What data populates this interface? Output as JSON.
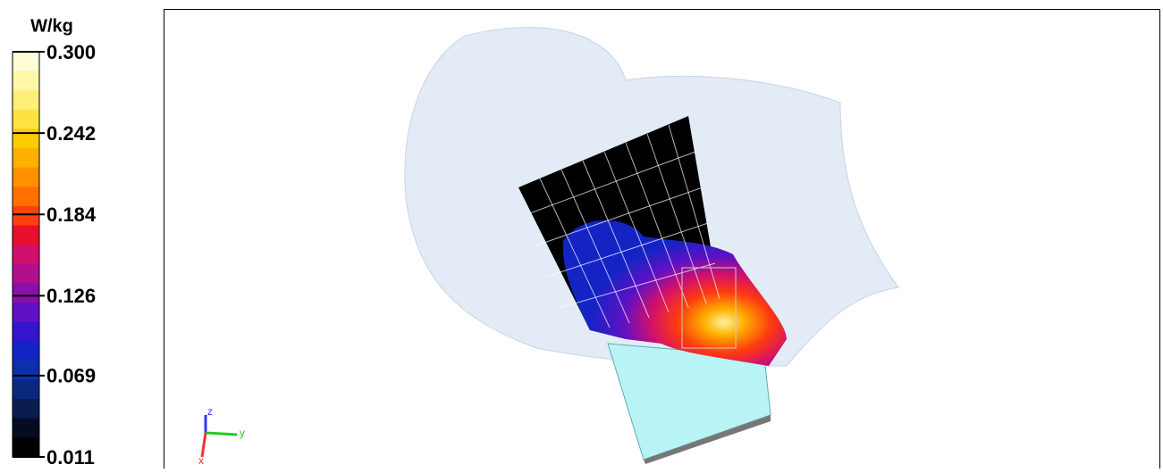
{
  "colorbar": {
    "unit": "W/kg",
    "ticks": [
      {
        "value": 0.3,
        "label": "0.300"
      },
      {
        "value": 0.242,
        "label": "0.242"
      },
      {
        "value": 0.184,
        "label": "0.184"
      },
      {
        "value": 0.126,
        "label": "0.126"
      },
      {
        "value": 0.069,
        "label": "0.069"
      },
      {
        "value": 0.011,
        "label": "0.011"
      }
    ],
    "colors": [
      "#fffcd8",
      "#fff7a8",
      "#ffef78",
      "#ffe240",
      "#ffcc00",
      "#ffb000",
      "#ff9000",
      "#ff7000",
      "#ff4010",
      "#e8102c",
      "#d0106c",
      "#b0108c",
      "#8810a8",
      "#6010c4",
      "#3414cc",
      "#1424c4",
      "#0c30a8",
      "#0a2880",
      "#081c50",
      "#040c24",
      "#000000"
    ]
  },
  "axes_triad": {
    "z": "z",
    "y": "y",
    "x": "x"
  }
}
